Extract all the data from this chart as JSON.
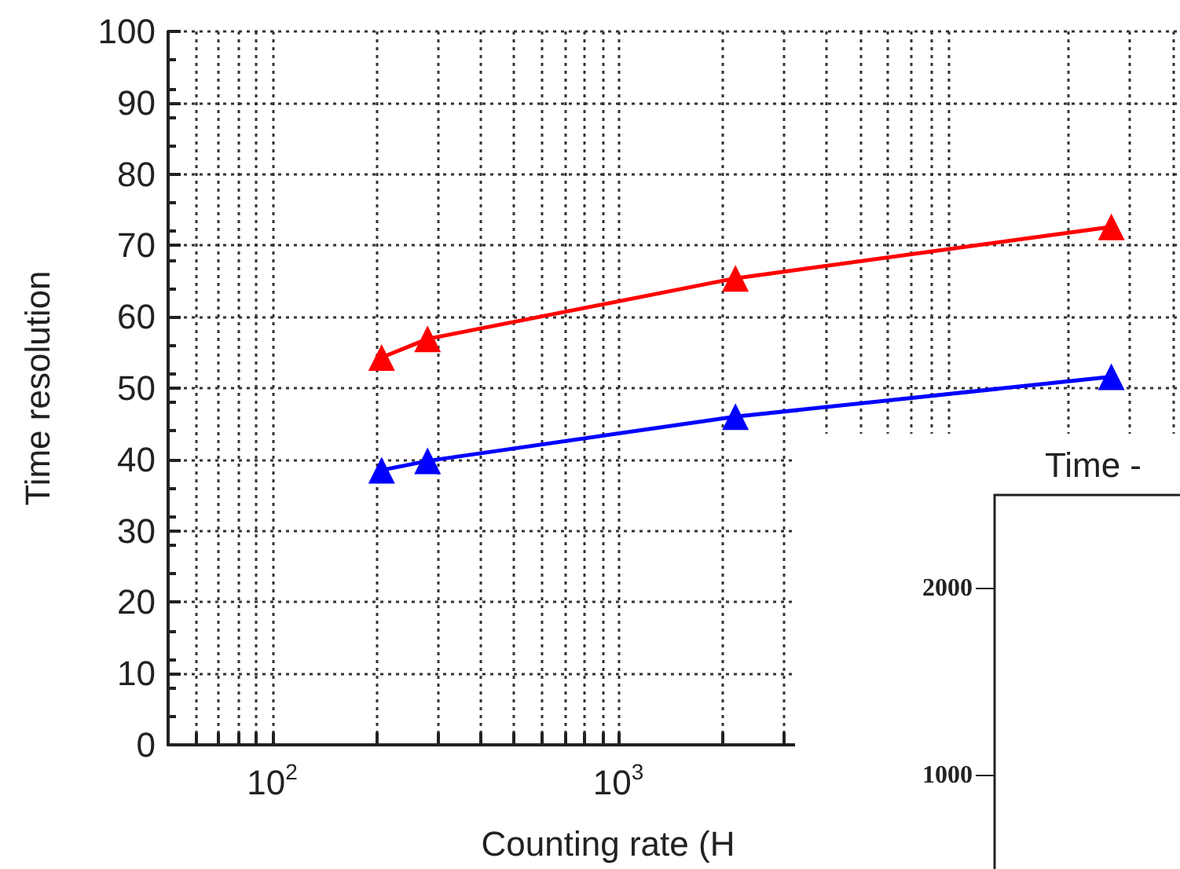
{
  "chart_data": [
    {
      "type": "line",
      "xlabel": "Counting rate (H",
      "ylabel": "Time resolution",
      "log": "x",
      "xlim": [
        50,
        42000
      ],
      "xticks": [
        {
          "value": 60,
          "label": null
        },
        {
          "value": 70,
          "label": null
        },
        {
          "value": 80,
          "label": null
        },
        {
          "value": 90,
          "label": null
        },
        {
          "value": 100,
          "label": "10$^{2}$"
        },
        {
          "value": 200,
          "label": null
        },
        {
          "value": 300,
          "label": null
        },
        {
          "value": 400,
          "label": null
        },
        {
          "value": 500,
          "label": null
        },
        {
          "value": 600,
          "label": null
        },
        {
          "value": 700,
          "label": null
        },
        {
          "value": 800,
          "label": null
        },
        {
          "value": 900,
          "label": null
        },
        {
          "value": 1000,
          "label": "10$^{3}$"
        },
        {
          "value": 2000,
          "label": null
        },
        {
          "value": 3000,
          "label": null
        },
        {
          "value": 4000,
          "label": null
        },
        {
          "value": 5000,
          "label": null
        },
        {
          "value": 6000,
          "label": null
        },
        {
          "value": 7000,
          "label": null
        },
        {
          "value": 8000,
          "label": null
        },
        {
          "value": 9000,
          "label": null
        },
        {
          "value": 20000,
          "label": null
        },
        {
          "value": 30000,
          "label": null
        },
        {
          "value": 40000,
          "label": null
        }
      ],
      "ylim": [
        0,
        100
      ],
      "yticks": [
        0,
        10,
        20,
        30,
        40,
        50,
        60,
        70,
        80,
        90,
        100
      ],
      "grid": true,
      "marker": "triangle",
      "line_style": "solid",
      "series": [
        {
          "color": "#ff0000",
          "x": [
            207,
            281,
            2180,
            26600
          ],
          "values": [
            54.3,
            56.9,
            65.4,
            72.6
          ]
        },
        {
          "color": "#0000ff",
          "x": [
            207,
            281,
            2180,
            26600
          ],
          "values": [
            38.5,
            39.8,
            46.0,
            51.6
          ]
        }
      ]
    },
    {
      "type": "other",
      "title": "Time -",
      "annotations": [
        "2000",
        "1000"
      ]
    }
  ]
}
